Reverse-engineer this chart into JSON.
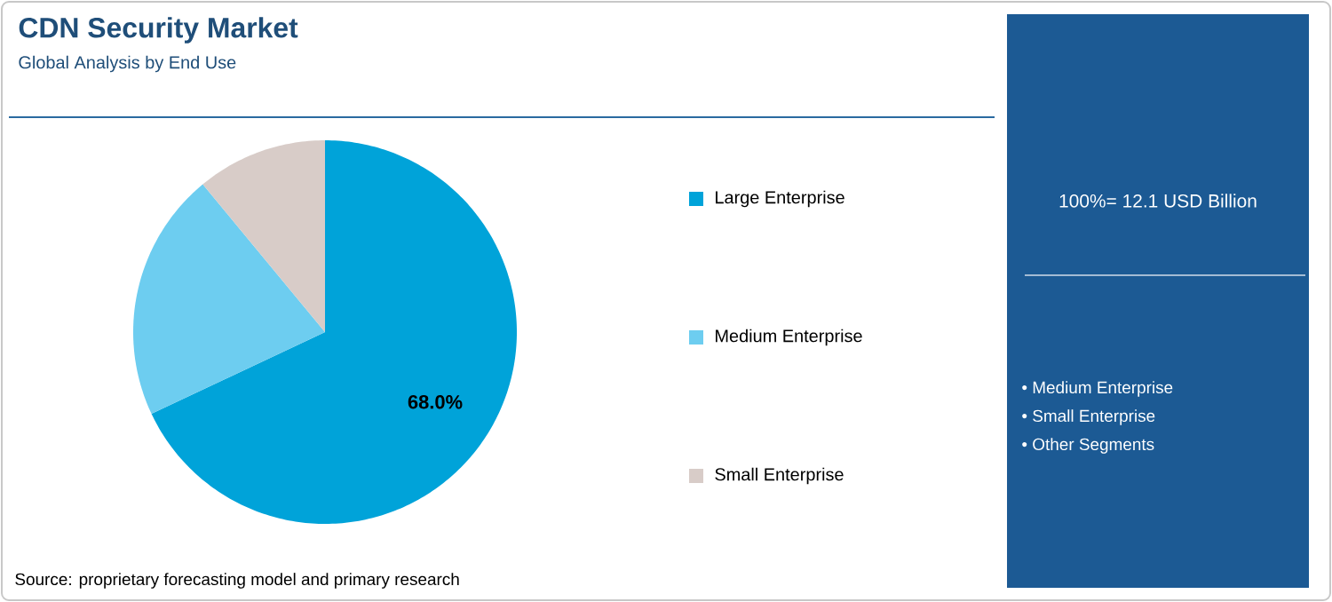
{
  "chart_data": {
    "type": "pie",
    "title": "CDN Security Market",
    "subtitle": "Global Analysis by End Use",
    "categories": [
      "Large Enterprise",
      "Medium Enterprise",
      "Small Enterprise"
    ],
    "values": [
      68.0,
      21,
      11
    ],
    "colors": [
      "#00a3d9",
      "#6dcdf0",
      "#d8ccc8"
    ],
    "value_labels": [
      "68.0%",
      null,
      null
    ],
    "legend": "right",
    "annotations": [
      "100%= 12.1 USD Billion",
      "• Medium Enterprise",
      "• Small Enterprise",
      "• Other Segments",
      "Source: proprietary forecasting model and primary research"
    ]
  }
}
